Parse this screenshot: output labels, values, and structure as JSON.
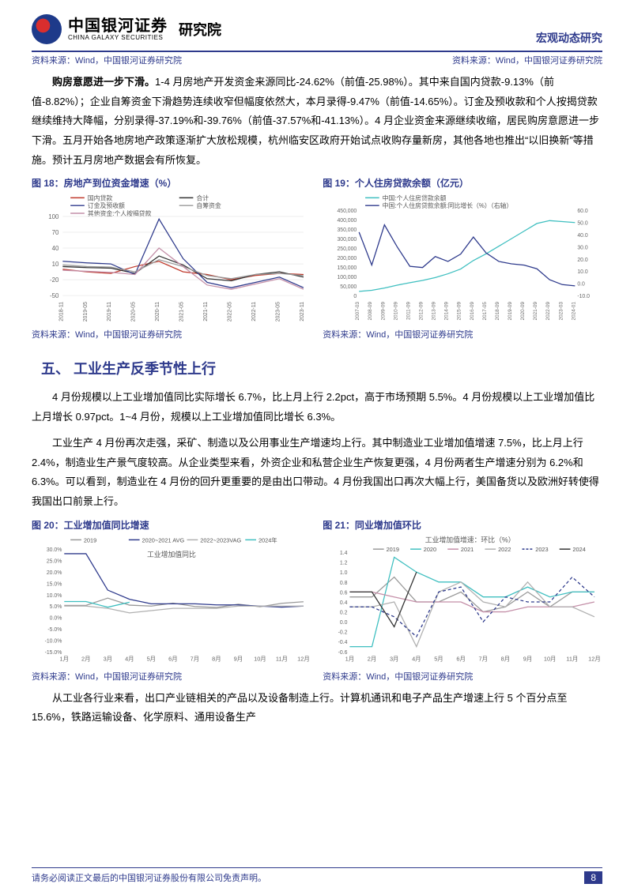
{
  "header": {
    "logo_cn": "中国银河证券",
    "logo_en": "CHINA GALAXY SECURITIES",
    "logo_sub": "研究院",
    "right": "宏观动态研究"
  },
  "top_source_left": "资料来源：Wind，中国银河证券研究院",
  "top_source_right": "资料来源：Wind，中国银河证券研究院",
  "para1_bold": "购房意愿进一步下滑。",
  "para1_rest": "1-4 月房地产开发资金来源同比-24.62%（前值-25.98%）。其中来自国内贷款-9.13%（前值-8.82%）；企业自筹资金下滑趋势连续收窄但幅度依然大，本月录得-9.47%（前值-14.65%）。订金及预收款和个人按揭贷款继续维持大降幅，分别录得-37.19%和-39.76%（前值-37.57%和-41.13%）。4 月企业资金来源继续收缩，居民购房意愿进一步下滑。五月开始各地房地产政策逐渐扩大放松规模，杭州临安区政府开始试点收购存量新房，其他各地也推出“以旧换新”等措施。预计五月房地产数据会有所恢复。",
  "chart18": {
    "title": "图 18：房地产到位资金增速（%）",
    "legend": [
      "国内贷款",
      "合计",
      "订金及预收额",
      "自筹资金",
      "其他资金:个人按揭贷款"
    ],
    "legend_colors": [
      "#c0392b",
      "#333333",
      "#2e3a8c",
      "#999999",
      "#c48fa8"
    ],
    "xlabels": [
      "2018-11",
      "2019-05",
      "2019-11",
      "2020-05",
      "2020-11",
      "2021-05",
      "2021-11",
      "2022-05",
      "2022-11",
      "2023-05",
      "2023-11"
    ],
    "yticks": [
      -50,
      -20,
      10,
      40,
      70,
      100
    ],
    "background_color": "#ffffff",
    "series": {
      "domestic_loan": {
        "color": "#c0392b",
        "points": [
          0,
          -5,
          -8,
          5,
          15,
          -5,
          -10,
          -20,
          -12,
          -8,
          -10
        ]
      },
      "total": {
        "color": "#333333",
        "points": [
          5,
          3,
          2,
          -8,
          25,
          8,
          -18,
          -22,
          -10,
          -5,
          -15
        ]
      },
      "deposit": {
        "color": "#2e3a8c",
        "points": [
          15,
          12,
          10,
          -10,
          95,
          20,
          -25,
          -35,
          -25,
          -15,
          -35
        ]
      },
      "self_raised": {
        "color": "#999999",
        "points": [
          8,
          5,
          4,
          -5,
          18,
          5,
          -12,
          -18,
          -10,
          -8,
          -12
        ]
      },
      "mortgage": {
        "color": "#c48fa8",
        "points": [
          -2,
          -4,
          -6,
          -10,
          40,
          5,
          -30,
          -38,
          -28,
          -18,
          -38
        ]
      }
    },
    "source": "资料来源：Wind，中国银河证券研究院"
  },
  "chart19": {
    "title": "图 19：个人住房贷款余额（亿元）",
    "legend": [
      "中国:个人住房贷款余额",
      "中国:个人住房贷款余额:同比增长（%）（右轴）"
    ],
    "legend_colors": [
      "#3fbfc0",
      "#2e3a8c"
    ],
    "xlabels": [
      "2007-03",
      "2008-09",
      "2009-09",
      "2010-09",
      "2011-09",
      "2012-09",
      "2013-09",
      "2014-09",
      "2015-09",
      "2016-09",
      "2017-05",
      "2018-09",
      "2019-09",
      "2020-09",
      "2021-09",
      "2022-09",
      "2023-03",
      "2024-01"
    ],
    "yleft_ticks": [
      0,
      50000,
      100000,
      150000,
      200000,
      250000,
      300000,
      350000,
      400000,
      450000
    ],
    "yright_ticks": [
      -10.0,
      0.0,
      10.0,
      20.0,
      30.0,
      40.0,
      50.0,
      60.0
    ],
    "balance": {
      "color": "#3fbfc0",
      "points": [
        22000,
        28000,
        40000,
        55000,
        68000,
        80000,
        95000,
        115000,
        140000,
        185000,
        220000,
        260000,
        300000,
        340000,
        380000,
        395000,
        390000,
        385000
      ]
    },
    "yoy": {
      "color": "#2e3a8c",
      "points": [
        42,
        15,
        48,
        30,
        14,
        13,
        22,
        18,
        24,
        38,
        25,
        18,
        16,
        15,
        12,
        3,
        -1,
        -2
      ]
    },
    "source": "资料来源：Wind，中国银河证券研究院"
  },
  "section5": "五、 工业生产反季节性上行",
  "para2": "4 月份规模以上工业增加值同比实际增长 6.7%，比上月上行 2.2pct，高于市场预期 5.5%。4 月份规模以上工业增加值比上月增长 0.97pct。1~4 月份，规模以上工业增加值同比增长 6.3%。",
  "para3": "工业生产 4 月份再次走强，采矿、制造以及公用事业生产增速均上行。其中制造业工业增加值增速 7.5%，比上月上行 2.4%，制造业生产景气度较高。从企业类型来看，外资企业和私营企业生产恢复更强，4 月份两者生产增速分别为 6.2%和 6.3%。可以看到，制造业在 4 月份的回升更重要的是由出口带动。4 月份我国出口再次大幅上行，美国备货以及欧洲好转使得我国出口前景上行。",
  "chart20": {
    "title": "图 20：工业增加值同比增速",
    "legend": [
      "2019",
      "2020~2021 AVG",
      "2022~2023VAG",
      "2024年"
    ],
    "legend_colors": [
      "#999999",
      "#2e3a8c",
      "#b0b0b0",
      "#3fbfc0"
    ],
    "inner_title": "工业增加值同比",
    "xlabels": [
      "1月",
      "2月",
      "3月",
      "4月",
      "5月",
      "6月",
      "7月",
      "8月",
      "9月",
      "10月",
      "11月",
      "12月"
    ],
    "yticks": [
      "-15.0%",
      "-10.0%",
      "-5.0%",
      "0.0%",
      "5.0%",
      "10.0%",
      "15.0%",
      "20.0%",
      "25.0%",
      "30.0%"
    ],
    "series": {
      "s2019": {
        "color": "#999999",
        "points": [
          5.3,
          5.3,
          8.5,
          5.4,
          5.0,
          6.3,
          4.8,
          4.4,
          5.8,
          4.7,
          6.2,
          6.9
        ]
      },
      "s2020_21": {
        "color": "#2e3a8c",
        "points": [
          28,
          28,
          12,
          8,
          6,
          6,
          6,
          5.5,
          5.5,
          5,
          4.5,
          5
        ]
      },
      "s2022_23": {
        "color": "#b0b0b0",
        "points": [
          5,
          5,
          4,
          2,
          3,
          4,
          4,
          4,
          5,
          5,
          5,
          5
        ]
      },
      "s2024": {
        "color": "#3fbfc0",
        "points": [
          7,
          7,
          4.5,
          6.7
        ]
      }
    },
    "source": "资料来源：Wind，中国银河证券研究院"
  },
  "chart21": {
    "title": "图 21：同业增加值环比",
    "legend": [
      "2019",
      "2020",
      "2021",
      "2022",
      "2023",
      "2024"
    ],
    "legend_colors": [
      "#999999",
      "#3fbfc0",
      "#c48fa8",
      "#b0b0b0",
      "#2e3a8c",
      "#333333"
    ],
    "inner_title": "工业增加值增速：环比（%）",
    "xlabels": [
      "1月",
      "2月",
      "3月",
      "4月",
      "5月",
      "6月",
      "7月",
      "8月",
      "9月",
      "10月",
      "11月",
      "12月"
    ],
    "yticks": [
      "-0.6",
      "-0.4",
      "-0.2",
      "0.0",
      "0.2",
      "0.4",
      "0.6",
      "0.8",
      "1.0",
      "1.2",
      "1.4"
    ],
    "series": {
      "s2019": {
        "color": "#999999",
        "points": [
          0.5,
          0.5,
          0.9,
          0.4,
          0.4,
          0.6,
          0.2,
          0.3,
          0.6,
          0.3,
          0.6,
          0.6
        ]
      },
      "s2020": {
        "color": "#3fbfc0",
        "points": [
          -0.5,
          -0.5,
          1.3,
          1.0,
          0.8,
          0.8,
          0.5,
          0.5,
          0.7,
          0.5,
          0.6,
          0.6
        ]
      },
      "s2021": {
        "color": "#c48fa8",
        "points": [
          0.6,
          0.6,
          0.5,
          0.4,
          0.4,
          0.4,
          0.2,
          0.2,
          0.3,
          0.3,
          0.3,
          0.4
        ]
      },
      "s2022": {
        "color": "#b0b0b0",
        "points": [
          0.3,
          0.3,
          0.4,
          -0.5,
          0.6,
          0.8,
          0.4,
          0.3,
          0.8,
          0.3,
          0.3,
          0.1
        ]
      },
      "s2023": {
        "color": "#2e3a8c",
        "dash": "4,3",
        "points": [
          0.3,
          0.3,
          0.1,
          -0.3,
          0.6,
          0.7,
          0.0,
          0.5,
          0.4,
          0.4,
          0.9,
          0.5
        ]
      },
      "s2024": {
        "color": "#333333",
        "points": [
          0.6,
          0.6,
          -0.1,
          1.0
        ]
      }
    },
    "source": "资料来源：Wind，中国银河证券研究院"
  },
  "para4": "从工业各行业来看，出口产业链相关的产品以及设备制造上行。计算机通讯和电子产品生产增速上行 5 个百分点至 15.6%，铁路运输设备、化学原料、通用设备生产",
  "footer": {
    "text": "请务必阅读正文最后的中国银河证券股份有限公司免责声明。",
    "page": "8"
  },
  "colors": {
    "accent": "#2e3a8c",
    "red": "#c0392b",
    "teal": "#3fbfc0",
    "gray": "#999999"
  }
}
